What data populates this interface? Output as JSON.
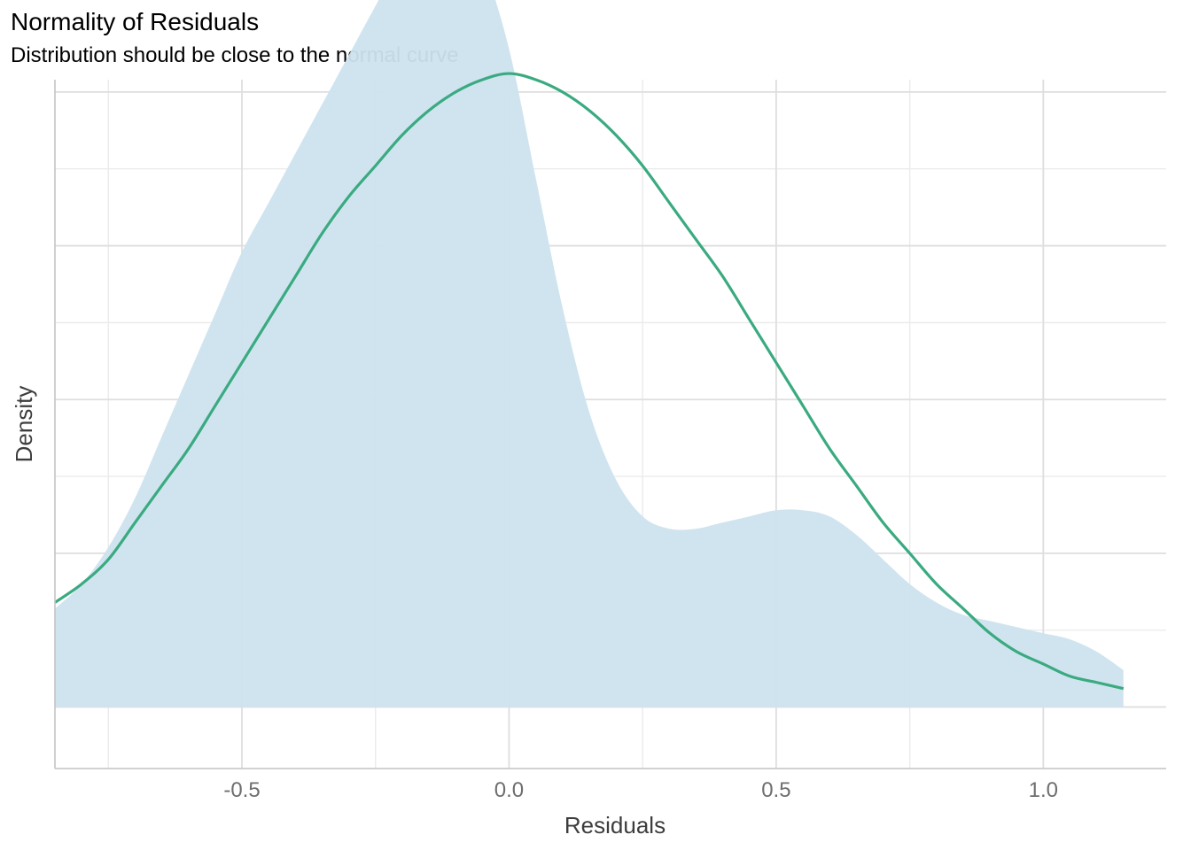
{
  "colors": {
    "density_fill": "#cde3ef",
    "normal_curve": "#3aaa80",
    "grid_major": "#dedede",
    "grid_minor": "#ebebeb",
    "axis_line": "#c4c4c4",
    "tick_label": "#6e6e6e",
    "axis_title": "#3d3d3d"
  },
  "chart_data": {
    "type": "area",
    "title": "Normality of Residuals",
    "subtitle": "Distribution should be close to the normal curve",
    "xlabel": "Residuals",
    "ylabel": "Density",
    "xlim": [
      -0.85,
      1.23
    ],
    "ylim": [
      -0.1,
      1.02
    ],
    "x_ticks": [
      -0.5,
      0.0,
      0.5,
      1.0
    ],
    "x_tick_labels": [
      "-0.5",
      "0.0",
      "0.5",
      "1.0"
    ],
    "y_tick_labels_shown": false,
    "grid": true,
    "series": [
      {
        "kind": "density",
        "x": [
          -0.85,
          -0.8,
          -0.75,
          -0.7,
          -0.65,
          -0.6,
          -0.55,
          -0.5,
          -0.45,
          -0.4,
          -0.35,
          -0.3,
          -0.25,
          -0.2,
          -0.15,
          -0.12,
          -0.1,
          -0.05,
          0.0,
          0.05,
          0.1,
          0.15,
          0.2,
          0.25,
          0.3,
          0.35,
          0.4,
          0.45,
          0.5,
          0.55,
          0.6,
          0.65,
          0.7,
          0.75,
          0.8,
          0.85,
          0.9,
          0.95,
          1.0,
          1.05,
          1.1,
          1.15
        ],
        "y": [
          0.16,
          0.2,
          0.26,
          0.34,
          0.44,
          0.54,
          0.64,
          0.74,
          0.82,
          0.9,
          0.98,
          1.06,
          1.14,
          1.22,
          1.28,
          1.3,
          1.29,
          1.21,
          1.07,
          0.86,
          0.65,
          0.48,
          0.37,
          0.31,
          0.29,
          0.29,
          0.3,
          0.31,
          0.32,
          0.32,
          0.31,
          0.28,
          0.24,
          0.2,
          0.17,
          0.15,
          0.14,
          0.13,
          0.12,
          0.11,
          0.09,
          0.06
        ]
      },
      {
        "kind": "normal_curve",
        "x": [
          -0.85,
          -0.8,
          -0.75,
          -0.7,
          -0.65,
          -0.6,
          -0.55,
          -0.5,
          -0.45,
          -0.4,
          -0.35,
          -0.3,
          -0.25,
          -0.2,
          -0.15,
          -0.1,
          -0.05,
          0.0,
          0.05,
          0.1,
          0.15,
          0.2,
          0.25,
          0.3,
          0.35,
          0.4,
          0.45,
          0.5,
          0.55,
          0.6,
          0.65,
          0.7,
          0.75,
          0.8,
          0.85,
          0.9,
          0.95,
          1.0,
          1.05,
          1.1,
          1.15
        ],
        "y": [
          0.17,
          0.2,
          0.24,
          0.3,
          0.36,
          0.42,
          0.49,
          0.56,
          0.63,
          0.7,
          0.77,
          0.83,
          0.88,
          0.93,
          0.97,
          1.0,
          1.02,
          1.03,
          1.02,
          1.0,
          0.97,
          0.93,
          0.88,
          0.82,
          0.76,
          0.7,
          0.63,
          0.56,
          0.49,
          0.42,
          0.36,
          0.3,
          0.25,
          0.2,
          0.16,
          0.12,
          0.09,
          0.07,
          0.05,
          0.04,
          0.03
        ]
      }
    ]
  }
}
